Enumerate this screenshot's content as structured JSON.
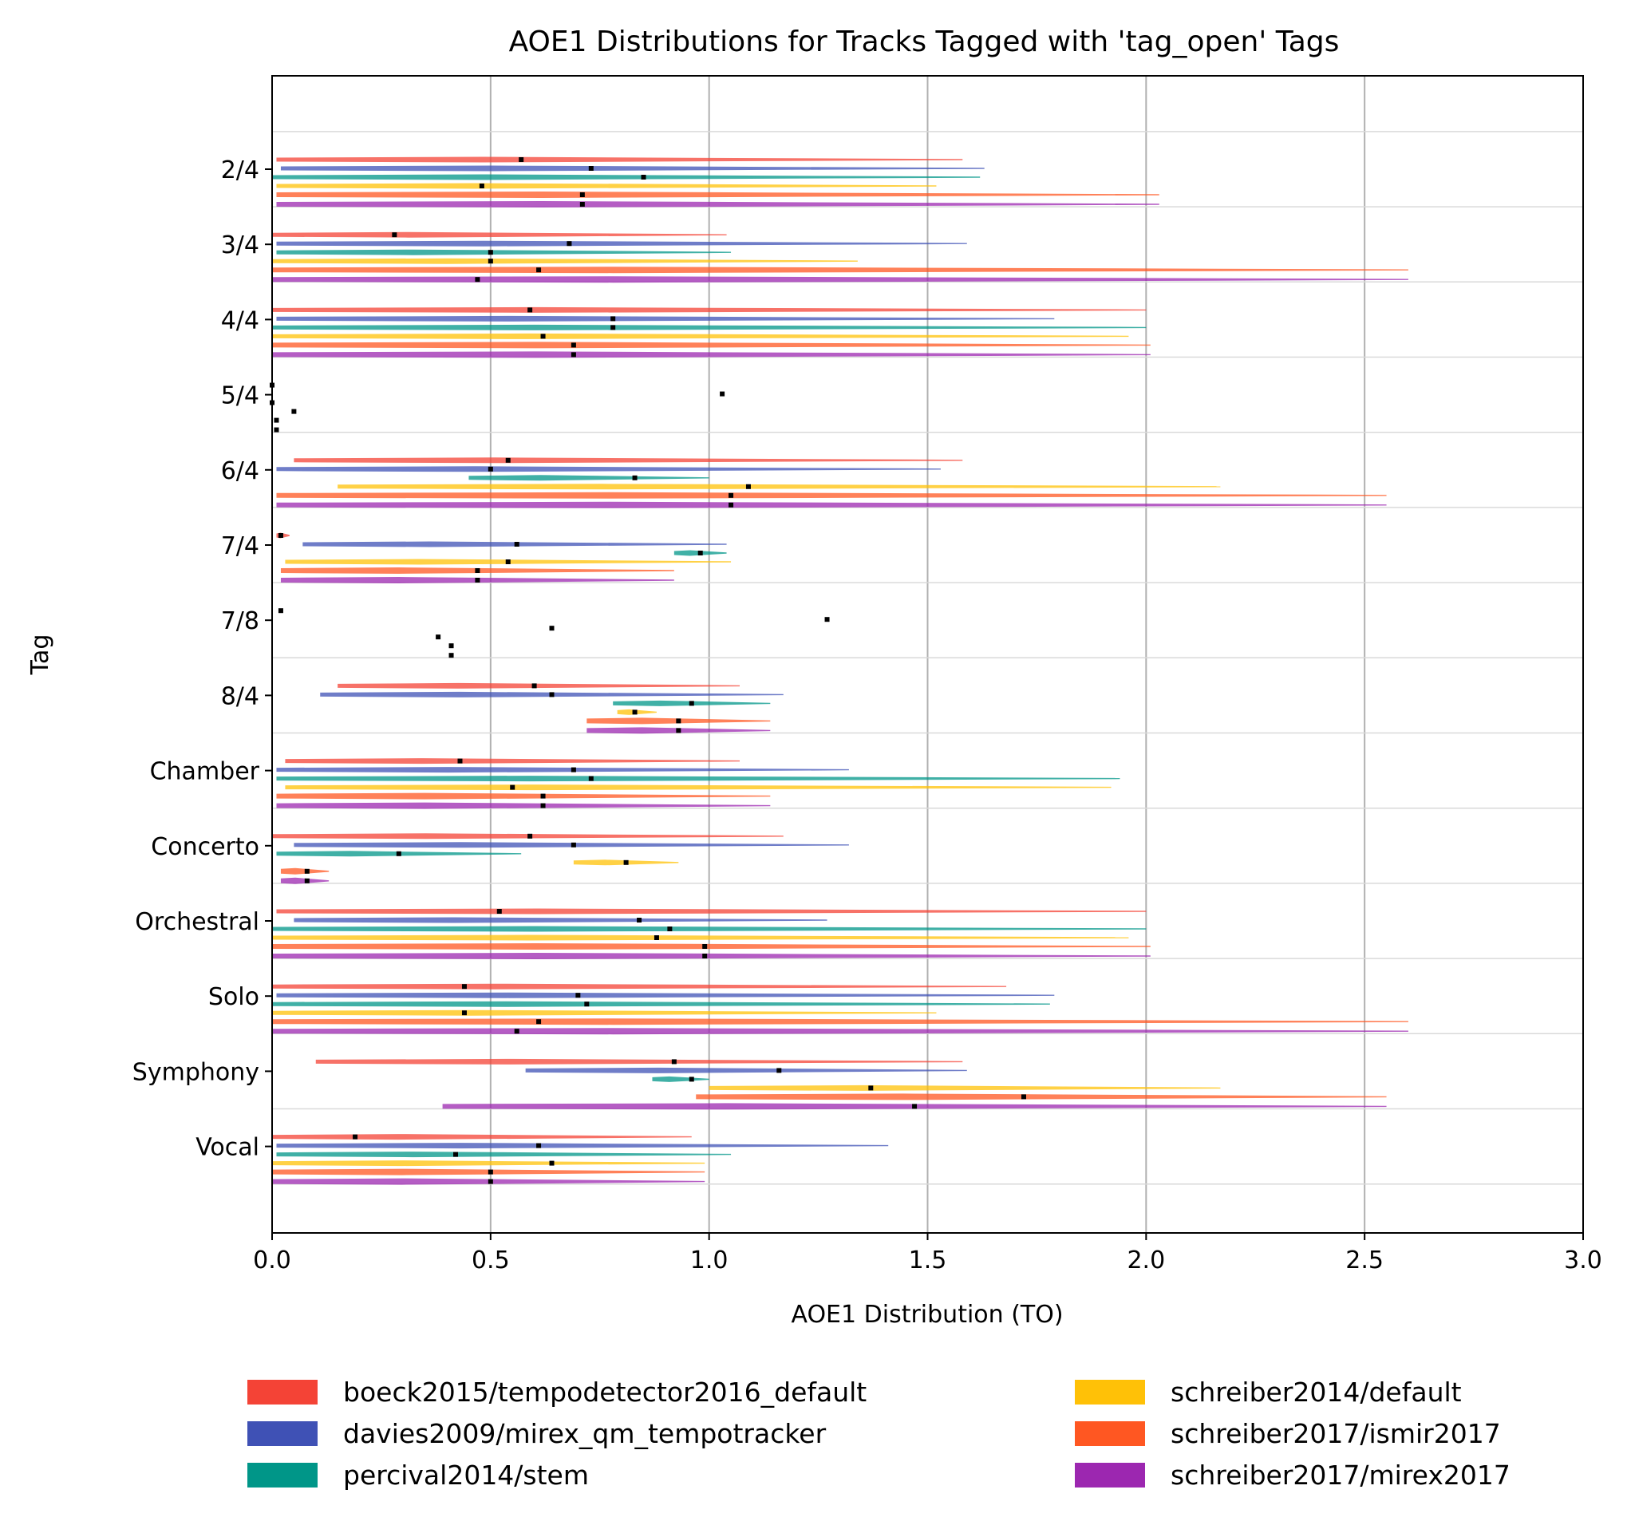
{
  "chart_data": {
    "type": "violin",
    "title": "AOE1 Distributions for Tracks Tagged with 'tag_open' Tags",
    "xlabel": "AOE1 Distribution (TO)",
    "ylabel": "Tag",
    "xlim": [
      0.0,
      3.0
    ],
    "xticks": [
      "0.0",
      "0.5",
      "1.0",
      "1.5",
      "2.0",
      "2.5",
      "3.0"
    ],
    "grid": "vertical lines at x ticks",
    "legend_placement": "below plot, two columns",
    "categories": [
      "2/4",
      "3/4",
      "4/4",
      "5/4",
      "6/4",
      "7/4",
      "7/8",
      "8/4",
      "Chamber",
      "Concerto",
      "Orchestral",
      "Solo",
      "Symphony",
      "Vocal"
    ],
    "series": [
      {
        "name": "boeck2015/tempodetector2016_default",
        "color": "#f44336",
        "ranges": [
          [
            0.01,
            1.58
          ],
          [
            0.0,
            1.04
          ],
          [
            0.0,
            2.0
          ],
          null,
          [
            0.05,
            1.58
          ],
          [
            0.01,
            0.04
          ],
          null,
          [
            0.15,
            1.07
          ],
          [
            0.03,
            1.07
          ],
          [
            0.0,
            1.17
          ],
          [
            0.01,
            2.0
          ],
          [
            0.0,
            1.68
          ],
          [
            0.1,
            1.58
          ],
          [
            0.0,
            0.96
          ]
        ],
        "medians": [
          0.57,
          0.28,
          0.59,
          0.0,
          0.54,
          0.02,
          0.02,
          0.6,
          0.43,
          0.59,
          0.52,
          0.44,
          0.92,
          0.19
        ]
      },
      {
        "name": "davies2009/mirex_qm_tempotracker",
        "color": "#3f51b5",
        "ranges": [
          [
            0.02,
            1.63
          ],
          [
            0.01,
            1.59
          ],
          [
            0.01,
            1.79
          ],
          null,
          [
            0.01,
            1.53
          ],
          [
            0.07,
            1.04
          ],
          null,
          [
            0.11,
            1.17
          ],
          [
            0.01,
            1.32
          ],
          [
            0.05,
            1.32
          ],
          [
            0.05,
            1.27
          ],
          [
            0.01,
            1.79
          ],
          [
            0.58,
            1.59
          ],
          [
            0.01,
            1.41
          ]
        ],
        "medians": [
          0.73,
          0.68,
          0.78,
          1.03,
          0.5,
          0.56,
          1.27,
          0.64,
          0.69,
          0.69,
          0.84,
          0.7,
          1.16,
          0.61
        ]
      },
      {
        "name": "percival2014/stem",
        "color": "#009688",
        "ranges": [
          [
            0.0,
            1.62
          ],
          [
            0.01,
            1.05
          ],
          [
            0.0,
            2.0
          ],
          null,
          [
            0.45,
            1.0
          ],
          [
            0.92,
            1.04
          ],
          null,
          [
            0.78,
            1.14
          ],
          [
            0.01,
            1.94
          ],
          [
            0.01,
            0.57
          ],
          [
            0.0,
            2.0
          ],
          [
            0.0,
            1.78
          ],
          [
            0.87,
            1.0
          ],
          [
            0.01,
            1.05
          ]
        ],
        "medians": [
          0.85,
          0.5,
          0.78,
          0.0,
          0.83,
          0.98,
          0.64,
          0.96,
          0.73,
          0.29,
          0.91,
          0.72,
          0.96,
          0.42
        ]
      },
      {
        "name": "schreiber2014/default",
        "color": "#ffc107",
        "ranges": [
          [
            0.01,
            1.52
          ],
          [
            0.0,
            1.34
          ],
          [
            0.0,
            1.96
          ],
          null,
          [
            0.15,
            2.17
          ],
          [
            0.03,
            1.05
          ],
          null,
          [
            0.79,
            0.88
          ],
          [
            0.03,
            1.92
          ],
          [
            0.69,
            0.93
          ],
          [
            0.0,
            1.96
          ],
          [
            0.0,
            1.52
          ],
          [
            1.0,
            2.17
          ],
          [
            0.0,
            0.99
          ]
        ],
        "medians": [
          0.48,
          0.5,
          0.62,
          0.05,
          1.09,
          0.54,
          0.38,
          0.83,
          0.55,
          0.81,
          0.88,
          0.44,
          1.37,
          0.64
        ]
      },
      {
        "name": "schreiber2017/ismir2017",
        "color": "#ff5722",
        "ranges": [
          [
            0.01,
            2.03
          ],
          [
            0.0,
            2.6
          ],
          [
            0.0,
            2.01
          ],
          null,
          [
            0.01,
            2.55
          ],
          [
            0.02,
            0.92
          ],
          null,
          [
            0.72,
            1.14
          ],
          [
            0.01,
            1.14
          ],
          [
            0.02,
            0.13
          ],
          [
            0.0,
            2.01
          ],
          [
            0.0,
            2.6
          ],
          [
            0.97,
            2.55
          ],
          [
            0.0,
            0.99
          ]
        ],
        "medians": [
          0.71,
          0.61,
          0.69,
          0.01,
          1.05,
          0.47,
          0.41,
          0.93,
          0.62,
          0.08,
          0.99,
          0.61,
          1.72,
          0.5
        ]
      },
      {
        "name": "schreiber2017/mirex2017",
        "color": "#9c27b0",
        "ranges": [
          [
            0.01,
            2.03
          ],
          [
            0.0,
            2.6
          ],
          [
            0.0,
            2.01
          ],
          null,
          [
            0.01,
            2.55
          ],
          [
            0.02,
            0.92
          ],
          null,
          [
            0.72,
            1.14
          ],
          [
            0.01,
            1.14
          ],
          [
            0.02,
            0.13
          ],
          [
            0.0,
            2.01
          ],
          [
            0.0,
            2.6
          ],
          [
            0.39,
            2.55
          ],
          [
            0.0,
            0.99
          ]
        ],
        "medians": [
          0.71,
          0.47,
          0.69,
          0.01,
          1.05,
          0.47,
          0.41,
          0.93,
          0.62,
          0.08,
          0.99,
          0.56,
          1.47,
          0.5
        ]
      }
    ]
  }
}
